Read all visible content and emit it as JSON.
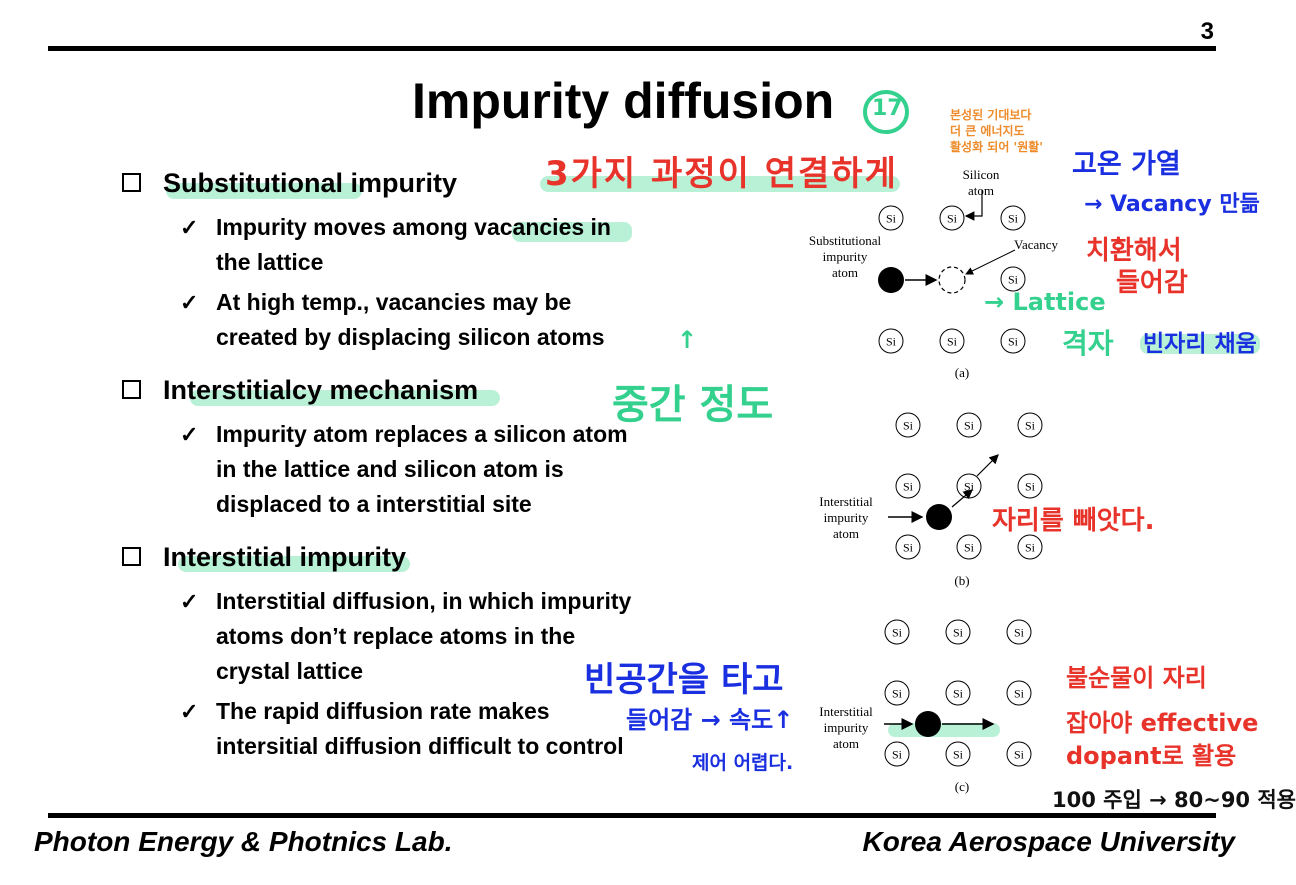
{
  "page_number": "3",
  "title": "Impurity diffusion",
  "sections": [
    {
      "heading": "Substitutional impurity",
      "bullets": [
        [
          "Impurity moves among vacancies in",
          "the lattice"
        ],
        [
          "At high temp., vacancies may be",
          "created by displacing silicon atoms"
        ]
      ]
    },
    {
      "heading": "Interstitialcy  mechanism",
      "bullets": [
        [
          "Impurity atom replaces a silicon atom",
          "in the lattice and silicon atom is",
          "displaced to a interstitial site"
        ]
      ]
    },
    {
      "heading": "Interstitial impurity",
      "bullets": [
        [
          "Interstitial diffusion, in which impurity",
          "atoms don’t replace atoms in the",
          "crystal lattice"
        ],
        [
          "The rapid diffusion rate makes",
          "intersitial diffusion difficult to control"
        ]
      ]
    }
  ],
  "figure": {
    "atom_label": "Si",
    "panel_a": {
      "caption": "(a)",
      "substitutional_label": [
        "Substitutional",
        "impurity",
        "atom"
      ],
      "silicon_label": [
        "Silicon",
        "atom"
      ],
      "vacancy_label": "Vacancy"
    },
    "panel_b": {
      "caption": "(b)",
      "interstitial_label": [
        "Interstitial",
        "impurity",
        "atom"
      ]
    },
    "panel_c": {
      "caption": "(c)",
      "interstitial_label": [
        "Interstitial",
        "impurity",
        "atom"
      ]
    }
  },
  "footer": {
    "left": "Photon Energy & Photnics Lab.",
    "right": "Korea Aerospace University"
  },
  "annotations": {
    "title_circle": "17",
    "three_processes": "3가지 과정이 연결하게",
    "orange_note": [
      "본성된 기대보다",
      "더 큰 에너지도",
      "활성화 되어 '원활'"
    ],
    "high_temp": "고온 가열",
    "vacancy_made": "→ Vacancy 만듦",
    "substitute": [
      "치환해서",
      "들어감"
    ],
    "lattice": "→ Lattice",
    "lattice_kr": "격자",
    "empty_spot": "빈자리 채움",
    "middle_point": "중간 정도",
    "pushed_out": "자리를 빼앗다.",
    "ride_space": "빈공간을 타고",
    "enter_speed": "들어감 → 속도↑",
    "hard_control": "제어 어렵다.",
    "impurity_place": [
      "불순물이 자리",
      "잡아야 effective",
      "dopant로 활용"
    ],
    "percent_note": "100 주입 → 80~90 적용"
  }
}
